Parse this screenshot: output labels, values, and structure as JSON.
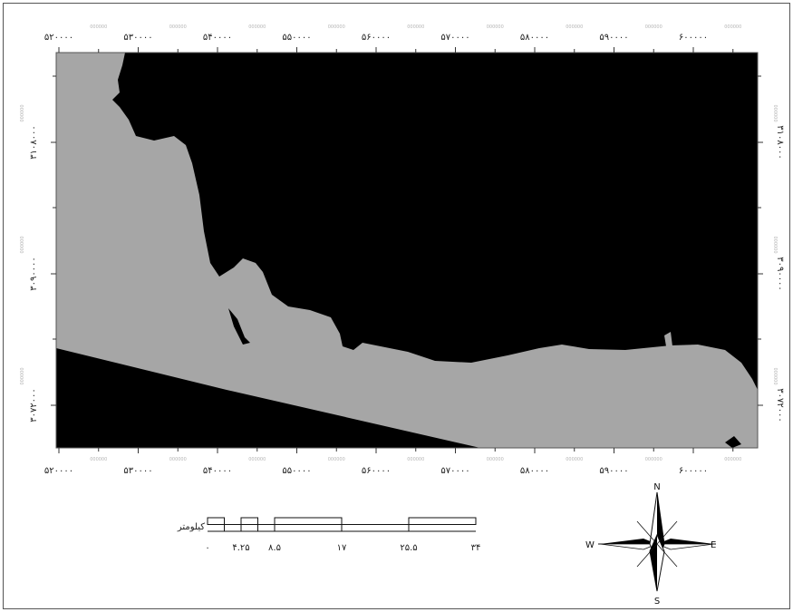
{
  "map": {
    "colors": {
      "sea": "#000000",
      "land": "#a6a6a6",
      "frame": "#555555"
    },
    "x_ticks": {
      "labels": [
        "۵۲۰۰۰۰",
        "۵۳۰۰۰۰",
        "۵۴۰۰۰۰",
        "۵۵۰۰۰۰",
        "۵۶۰۰۰۰",
        "۵۷۰۰۰۰",
        "۵۸۰۰۰۰",
        "۵۹۰۰۰۰",
        "۶۰۰۰۰۰"
      ],
      "minor_label": "000000"
    },
    "y_ticks": {
      "labels": [
        "۳۱۰۸۰۰۰",
        "۳۰۹۰۰۰۰",
        "۳۰۷۲۰۰۰"
      ],
      "minor_label": "000000"
    }
  },
  "scale_bar": {
    "unit": "کیلومتر",
    "labels": [
      "۰",
      "۴.۲۵",
      "۸.۵",
      "۱۷",
      "۲۵.۵",
      "۳۴"
    ],
    "values": [
      0,
      4.25,
      8.5,
      17,
      25.5,
      34
    ]
  },
  "north_arrow": {
    "n": "N",
    "s": "S",
    "e": "E",
    "w": "W"
  }
}
